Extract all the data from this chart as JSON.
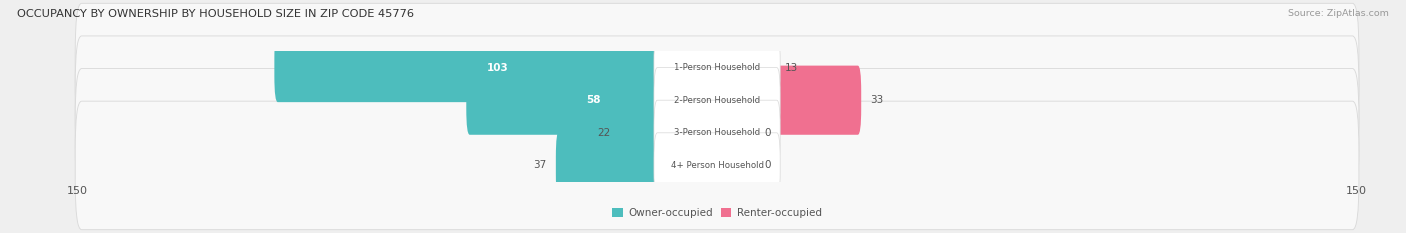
{
  "title": "OCCUPANCY BY OWNERSHIP BY HOUSEHOLD SIZE IN ZIP CODE 45776",
  "source": "Source: ZipAtlas.com",
  "categories": [
    "1-Person Household",
    "2-Person Household",
    "3-Person Household",
    "4+ Person Household"
  ],
  "owner_values": [
    103,
    58,
    22,
    37
  ],
  "renter_values": [
    13,
    33,
    0,
    0
  ],
  "owner_color": "#4dbdbd",
  "renter_color": "#f07090",
  "renter_color_light": "#f4a0b8",
  "axis_limit": 150,
  "bg_color": "#efefef",
  "row_bg_color": "#f8f8f8",
  "row_border_color": "#d8d8d8",
  "label_color": "#555555",
  "tick_color": "#555555",
  "title_color": "#333333",
  "source_color": "#999999",
  "zero_stub": 8
}
